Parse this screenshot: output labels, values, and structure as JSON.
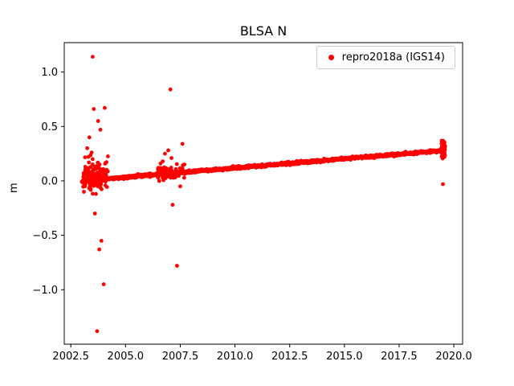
{
  "figure": {
    "title": "BLSA N"
  },
  "chart_data": {
    "type": "scatter",
    "title": "BLSA N",
    "xlabel": "",
    "ylabel": "m",
    "xlim": [
      2002.2,
      2020.4
    ],
    "ylim": [
      -1.5,
      1.27
    ],
    "xticks": [
      2002.5,
      2005.0,
      2007.5,
      2010.0,
      2012.5,
      2015.0,
      2017.5,
      2020.0
    ],
    "yticks": [
      -1.0,
      -0.5,
      0.0,
      0.5,
      1.0
    ],
    "grid": false,
    "legend": {
      "position": "upper right",
      "entries": [
        {
          "label": "repro2018a (IGS14)",
          "color": "#ff0000",
          "marker": "dot"
        }
      ]
    },
    "series": [
      {
        "name": "repro2018a (IGS14)",
        "color": "#ff0000",
        "marker_radius": 2.4,
        "trend": {
          "x_start": 2003.0,
          "x_end": 2019.55,
          "y_start": 0.0,
          "y_end": 0.28,
          "step": 0.01,
          "jitter": 0.006
        },
        "clusters": [
          {
            "x_start": 2003.05,
            "x_end": 2004.2,
            "count": 130,
            "y_spread": 0.06,
            "y_offset": 0.03
          },
          {
            "x_start": 2006.45,
            "x_end": 2007.7,
            "count": 90,
            "y_spread": 0.035,
            "y_offset": 0.01
          },
          {
            "x_start": 2019.42,
            "x_end": 2019.6,
            "count": 80,
            "y_spread": 0.03,
            "y_offset": 0.01
          }
        ],
        "outliers": [
          [
            2003.1,
            -0.1
          ],
          [
            2003.15,
            -0.05
          ],
          [
            2003.2,
            0.1
          ],
          [
            2003.25,
            0.3
          ],
          [
            2003.3,
            0.22
          ],
          [
            2003.35,
            0.4
          ],
          [
            2003.35,
            -0.02
          ],
          [
            2003.4,
            0.235
          ],
          [
            2003.45,
            0.26
          ],
          [
            2003.5,
            1.14
          ],
          [
            2003.5,
            0.2
          ],
          [
            2003.55,
            0.66
          ],
          [
            2003.6,
            0.13
          ],
          [
            2003.6,
            -0.3
          ],
          [
            2003.65,
            -0.12
          ],
          [
            2003.7,
            -1.38
          ],
          [
            2003.75,
            0.55
          ],
          [
            2003.8,
            -0.63
          ],
          [
            2003.85,
            0.47
          ],
          [
            2003.9,
            -0.55
          ],
          [
            2004.0,
            -0.95
          ],
          [
            2004.05,
            0.67
          ],
          [
            2006.5,
            0.12
          ],
          [
            2006.6,
            0.16
          ],
          [
            2006.7,
            0.18
          ],
          [
            2006.8,
            0.25
          ],
          [
            2006.95,
            0.28
          ],
          [
            2007.05,
            0.84
          ],
          [
            2007.1,
            0.21
          ],
          [
            2007.15,
            -0.22
          ],
          [
            2007.3,
            0.05
          ],
          [
            2007.35,
            -0.78
          ],
          [
            2007.5,
            -0.05
          ],
          [
            2007.6,
            0.34
          ],
          [
            2019.5,
            -0.03
          ]
        ]
      }
    ]
  }
}
